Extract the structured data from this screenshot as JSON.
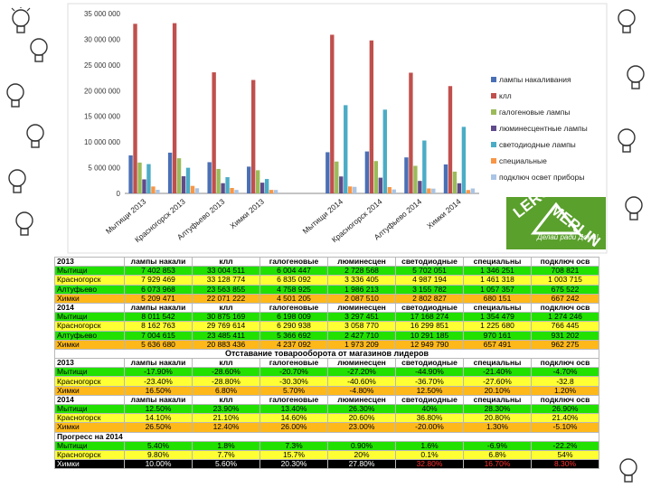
{
  "chart_data": {
    "type": "bar",
    "ylim": [
      0,
      35000000
    ],
    "yticks": [
      "35 000 000",
      "30 000 000",
      "25 000 000",
      "20 000 000",
      "15 000 000",
      "10 000 000",
      "5 000 000",
      "0"
    ],
    "categories": [
      "Мытищи 2013",
      "Красногорск 2013",
      "Алтуфьево 2013",
      "Химки 2013",
      "Мытищи 2014",
      "Красногорск 2014",
      "Алтуфьево 2014",
      "Химки 2014"
    ],
    "series": [
      {
        "name": "лампы накаливания",
        "color": "#4a6fb5",
        "values": [
          7402853,
          7929469,
          6073968,
          5209471,
          8011542,
          8162763,
          7004615,
          5636680
        ]
      },
      {
        "name": "клл",
        "color": "#c0504d",
        "values": [
          33004511,
          33128774,
          23563855,
          22071222,
          30875169,
          29769614,
          23485411,
          20883436
        ]
      },
      {
        "name": "галогеновые лампы",
        "color": "#9bbb59",
        "values": [
          6004447,
          6835092,
          4758925,
          4501205,
          6198009,
          6290938,
          5366692,
          4237092
        ]
      },
      {
        "name": "люминесцентные лампы",
        "color": "#5f4b8b",
        "values": [
          2728568,
          3336405,
          1986213,
          2087510,
          3297451,
          3058770,
          2427710,
          1973209
        ]
      },
      {
        "name": "светодиодные лампы",
        "color": "#4bacc6",
        "values": [
          5702051,
          4987194,
          3155782,
          2802827,
          17168274,
          16299851,
          10291185,
          12949790
        ]
      },
      {
        "name": "специальные",
        "color": "#f79646",
        "values": [
          1346251,
          1461318,
          1057357,
          680151,
          1354479,
          1225680,
          970161,
          657491
        ]
      },
      {
        "name": "подключ освет приборы",
        "color": "#a9c4e4",
        "values": [
          708821,
          1003715,
          675522,
          667242,
          1274246,
          766445,
          931202,
          962275
        ]
      }
    ]
  },
  "logo": {
    "line1": "LEROY",
    "line2": "MERLIN",
    "tagline": "Делай ради Дома!"
  },
  "table": {
    "rows": [
      {
        "cls": "hdr",
        "cells": [
          "2013",
          "лампы накали",
          "клл",
          "галогеновые",
          "люминесцен",
          "светодиодные",
          "специальны",
          "подключ осв"
        ]
      },
      {
        "cls": "g",
        "cells": [
          "Мытищи",
          "7 402 853",
          "33 004 511",
          "6 004 447",
          "2 728 568",
          "5 702 051",
          "1 346 251",
          "708 821"
        ]
      },
      {
        "cls": "y",
        "cells": [
          "Красногорск",
          "7 929 469",
          "33 128 774",
          "6 835 092",
          "3 336 405",
          "4 987 194",
          "1 461 318",
          "1 003 715"
        ]
      },
      {
        "cls": "g",
        "cells": [
          "Алтуфьево",
          "6 073 968",
          "23 563 855",
          "4 758 925",
          "1 986 213",
          "3 155 782",
          "1 057 357",
          "675 522"
        ]
      },
      {
        "cls": "o",
        "cells": [
          "Химки",
          "5 209 471",
          "22 071 222",
          "4 501 205",
          "2 087 510",
          "2 802 827",
          "680 151",
          "667 242"
        ]
      },
      {
        "cls": "hdr",
        "cells": [
          "2014",
          "лампы накали",
          "клл",
          "галогеновые",
          "люминесцен",
          "светодиодные",
          "специальны",
          "подключ осв"
        ]
      },
      {
        "cls": "g",
        "cells": [
          "Мытищи",
          "8 011 542",
          "30 875 169",
          "6 198 009",
          "3 297 451",
          "17 168 274",
          "1 354 479",
          "1 274 246"
        ]
      },
      {
        "cls": "y",
        "cells": [
          "Красногорск",
          "8 162 763",
          "29 769 614",
          "6 290 938",
          "3 058 770",
          "16 299 851",
          "1 225 680",
          "766 445"
        ]
      },
      {
        "cls": "g",
        "cells": [
          "Алтуфьево",
          "7 004 615",
          "23 485 411",
          "5 366 692",
          "2 427 710",
          "10 291 185",
          "970 161",
          "931 202"
        ]
      },
      {
        "cls": "o",
        "cells": [
          "Химки",
          "5 636 680",
          "20 883 436",
          "4 237 092",
          "1 973 209",
          "12 949 790",
          "657 491",
          "962 275"
        ]
      },
      {
        "cls": "sec",
        "cells": [
          "Отставание товарооборота от магазинов лидеров"
        ]
      },
      {
        "cls": "hdr",
        "cells": [
          "2013",
          "лампы накали",
          "клл",
          "галогеновые",
          "люминесцен",
          "светодиодные",
          "специальны",
          "подключ осв"
        ]
      },
      {
        "cls": "g",
        "cells": [
          "Мытищи",
          "-17.90%",
          "-28.60%",
          "-20.70%",
          "-27.20%",
          "-44.90%",
          "-21.40%",
          "-4.70%"
        ]
      },
      {
        "cls": "y",
        "cells": [
          "Красногорск",
          "-23.40%",
          "-28.80%",
          "-30.30%",
          "-40.60%",
          "-36.70%",
          "-27.60%",
          "-32.8"
        ]
      },
      {
        "cls": "o",
        "cells": [
          "Химки",
          "16.50%",
          "6.80%",
          "5.70%",
          "-4.80%",
          "12.50%",
          "20.10%",
          "1.20%"
        ]
      },
      {
        "cls": "hdr",
        "cells": [
          "2014",
          "лампы накали",
          "клл",
          "галогеновые",
          "люминесцен",
          "светодиодные",
          "специальны",
          "подключ осв"
        ]
      },
      {
        "cls": "g",
        "cells": [
          "Мытищи",
          "12.50%",
          "23.90%",
          "13.40%",
          "26.30%",
          "40%",
          "28.30%",
          "26.90%"
        ]
      },
      {
        "cls": "y",
        "cells": [
          "Красногорск",
          "14.10%",
          "21.10%",
          "14.60%",
          "20.60%",
          "36.80%",
          "20.80%",
          "21.40%"
        ]
      },
      {
        "cls": "o",
        "cells": [
          "Химки",
          "26.50%",
          "12.40%",
          "26.00%",
          "23.00%",
          "-20.00%",
          "1.30%",
          "-5.10%"
        ]
      },
      {
        "cls": "sec2",
        "cells": [
          "Прогресс на 2014"
        ]
      },
      {
        "cls": "g",
        "cells": [
          "Мытищи",
          "5.40%",
          "1.8%",
          "7.3%",
          "0.90%",
          "1.6%",
          "-6.9%",
          "-22.2%"
        ]
      },
      {
        "cls": "y",
        "cells": [
          "Красногорск",
          "9.80%",
          "7.7%",
          "15.7%",
          "20%",
          "0.1%",
          "6.8%",
          "54%"
        ]
      },
      {
        "cls": "k",
        "cells": [
          "Химки",
          "10.00%",
          "5.60%",
          "20.30%",
          "27.80%",
          "32.80%",
          "16.70%",
          "8.30%"
        ]
      }
    ]
  }
}
